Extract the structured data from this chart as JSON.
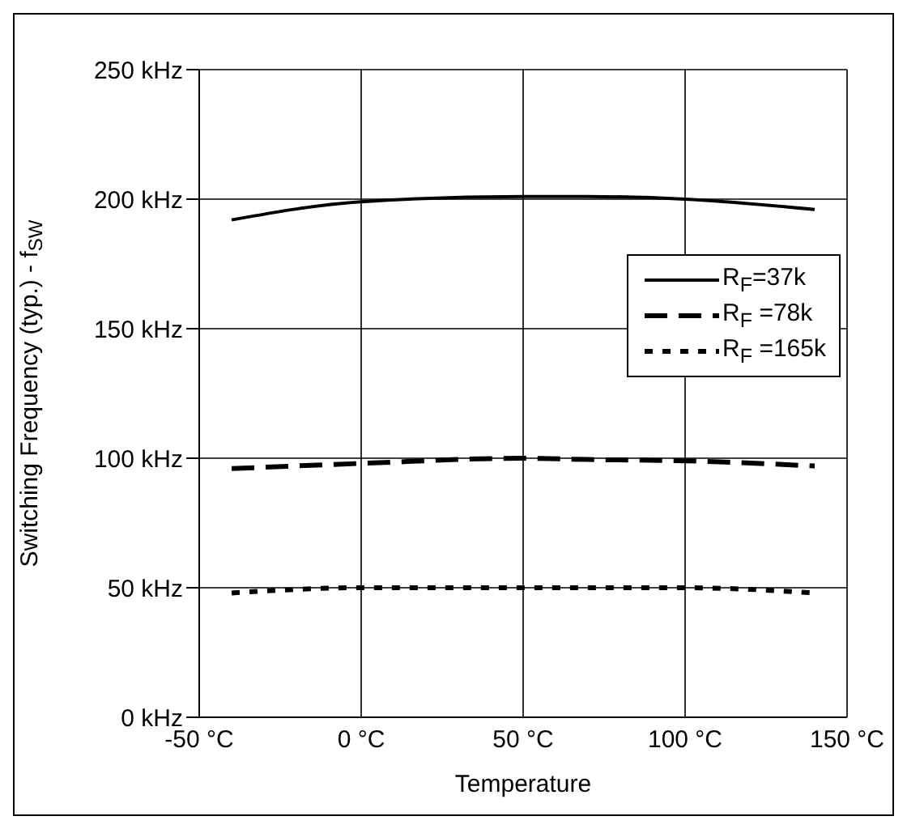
{
  "chart_data": {
    "type": "line",
    "xlabel": "Temperature",
    "ylabel": "Switching Frequency (typ.) - f$_{SW}$",
    "x": [
      -40,
      0,
      50,
      70,
      100,
      140
    ],
    "series": [
      {
        "name": "R$_{F}$=37k",
        "color": "#000000",
        "line_style": "solid",
        "values": [
          192,
          199,
          201,
          201,
          200,
          196
        ]
      },
      {
        "name": "R$_{F}$ =78k",
        "color": "#000000",
        "line_style": "dashed",
        "values": [
          96,
          98,
          100,
          99.5,
          99,
          97
        ]
      },
      {
        "name": "R$_{F}$ =165k",
        "color": "#000000",
        "line_style": "dotted",
        "values": [
          48,
          50,
          50,
          50,
          50,
          48
        ]
      }
    ],
    "xlim": [
      -50,
      150
    ],
    "xticks": [
      {
        "value": -50,
        "label": "-50 °C"
      },
      {
        "value": 0,
        "label": "0 °C"
      },
      {
        "value": 50,
        "label": "50 °C"
      },
      {
        "value": 100,
        "label": "100 °C"
      },
      {
        "value": 150,
        "label": "150 °C"
      }
    ],
    "ylim": [
      0,
      250
    ],
    "yticks": [
      {
        "value": 0,
        "label": "0 kHz"
      },
      {
        "value": 50,
        "label": "50 kHz"
      },
      {
        "value": 100,
        "label": "100 kHz"
      },
      {
        "value": 150,
        "label": "150 kHz"
      },
      {
        "value": 200,
        "label": "200 kHz"
      },
      {
        "value": 250,
        "label": "250 kHz"
      }
    ],
    "grid": true,
    "legend": "top right",
    "marker": "none"
  }
}
